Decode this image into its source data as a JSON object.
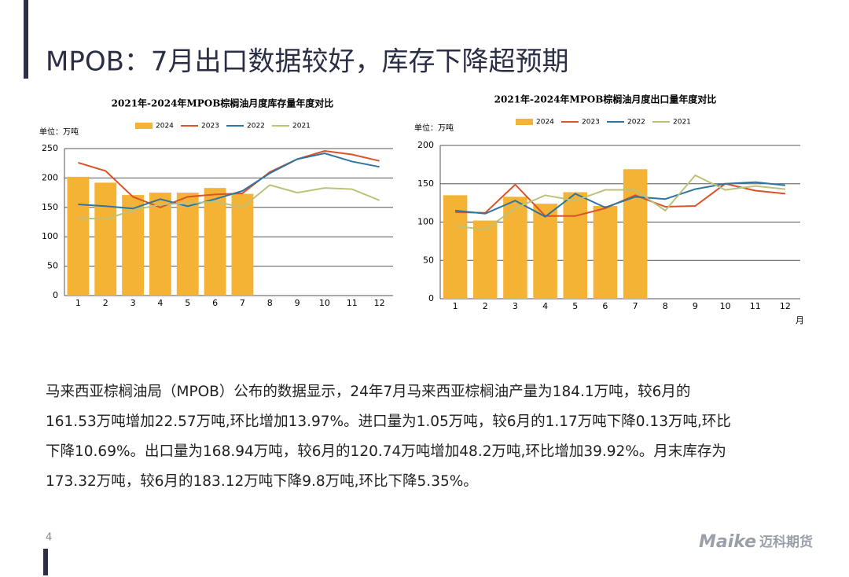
{
  "title": "MPOB：7月出口数据较好，库存下降超预期",
  "chart_data": [
    {
      "type": "bar_line",
      "title": "2021年-2024年MPOB棕榈油月度库存量年度对比",
      "unit_label": "单位：万吨",
      "categories": [
        "1",
        "2",
        "3",
        "4",
        "5",
        "6",
        "7",
        "8",
        "9",
        "10",
        "11",
        "12"
      ],
      "ylim": [
        0,
        250
      ],
      "yticks": [
        0,
        50,
        100,
        150,
        200,
        250
      ],
      "grid": true,
      "series": [
        {
          "name": "2024",
          "color": "#f5b335",
          "kind": "bar",
          "values": [
            202,
            192,
            171,
            175,
            175,
            183,
            173,
            null,
            null,
            null,
            null,
            null
          ]
        },
        {
          "name": "2023",
          "color": "#d9532b",
          "kind": "line",
          "values": [
            226,
            212,
            168,
            150,
            168,
            172,
            174,
            210,
            232,
            246,
            240,
            229
          ]
        },
        {
          "name": "2022",
          "color": "#2e75a0",
          "kind": "line",
          "values": [
            155,
            152,
            148,
            164,
            152,
            164,
            178,
            208,
            232,
            242,
            228,
            219
          ]
        },
        {
          "name": "2021",
          "color": "#bcc27a",
          "kind": "line",
          "values": [
            132,
            130,
            145,
            155,
            157,
            160,
            150,
            188,
            175,
            183,
            181,
            162
          ]
        }
      ]
    },
    {
      "type": "bar_line",
      "title": "2021年-2024年MPOB棕榈油月度出口量年度对比",
      "unit_label": "单位：万吨",
      "x_label": "月",
      "categories": [
        "1",
        "2",
        "3",
        "4",
        "5",
        "6",
        "7",
        "8",
        "9",
        "10",
        "11",
        "12"
      ],
      "ylim": [
        0,
        200
      ],
      "yticks": [
        0,
        50,
        100,
        150,
        200
      ],
      "grid": true,
      "series": [
        {
          "name": "2024",
          "color": "#f5b335",
          "kind": "bar",
          "values": [
            135,
            102,
            133,
            124,
            139,
            121,
            169,
            null,
            null,
            null,
            null,
            null
          ]
        },
        {
          "name": "2023",
          "color": "#d9532b",
          "kind": "line",
          "values": [
            113,
            112,
            149,
            108,
            108,
            118,
            135,
            120,
            121,
            150,
            141,
            137
          ]
        },
        {
          "name": "2022",
          "color": "#2e75a0",
          "kind": "line",
          "values": [
            115,
            111,
            128,
            107,
            137,
            119,
            133,
            130,
            143,
            150,
            152,
            148
          ]
        },
        {
          "name": "2021",
          "color": "#bcc27a",
          "kind": "line",
          "values": [
            95,
            90,
            118,
            135,
            128,
            142,
            142,
            115,
            161,
            142,
            147,
            143
          ]
        }
      ]
    }
  ],
  "body": [
    "马来西亚棕榈油局（MPOB）公布的数据显示，24年7月马来西亚棕榈油产量为184.1万吨，较6月的",
    "161.53万吨增加22.57万吨,环比增加13.97%。进口量为1.05万吨，较6月的1.17万吨下降0.13万吨,环比",
    "下降10.69%。出口量为168.94万吨，较6月的120.74万吨增加48.2万吨,环比增加39.92%。月末库存为",
    "173.32万吨，较6月的183.12万吨下降9.8万吨,环比下降5.35%。"
  ],
  "page_number": "4",
  "logo": {
    "brand": "Maike",
    "name": "迈科期货"
  }
}
